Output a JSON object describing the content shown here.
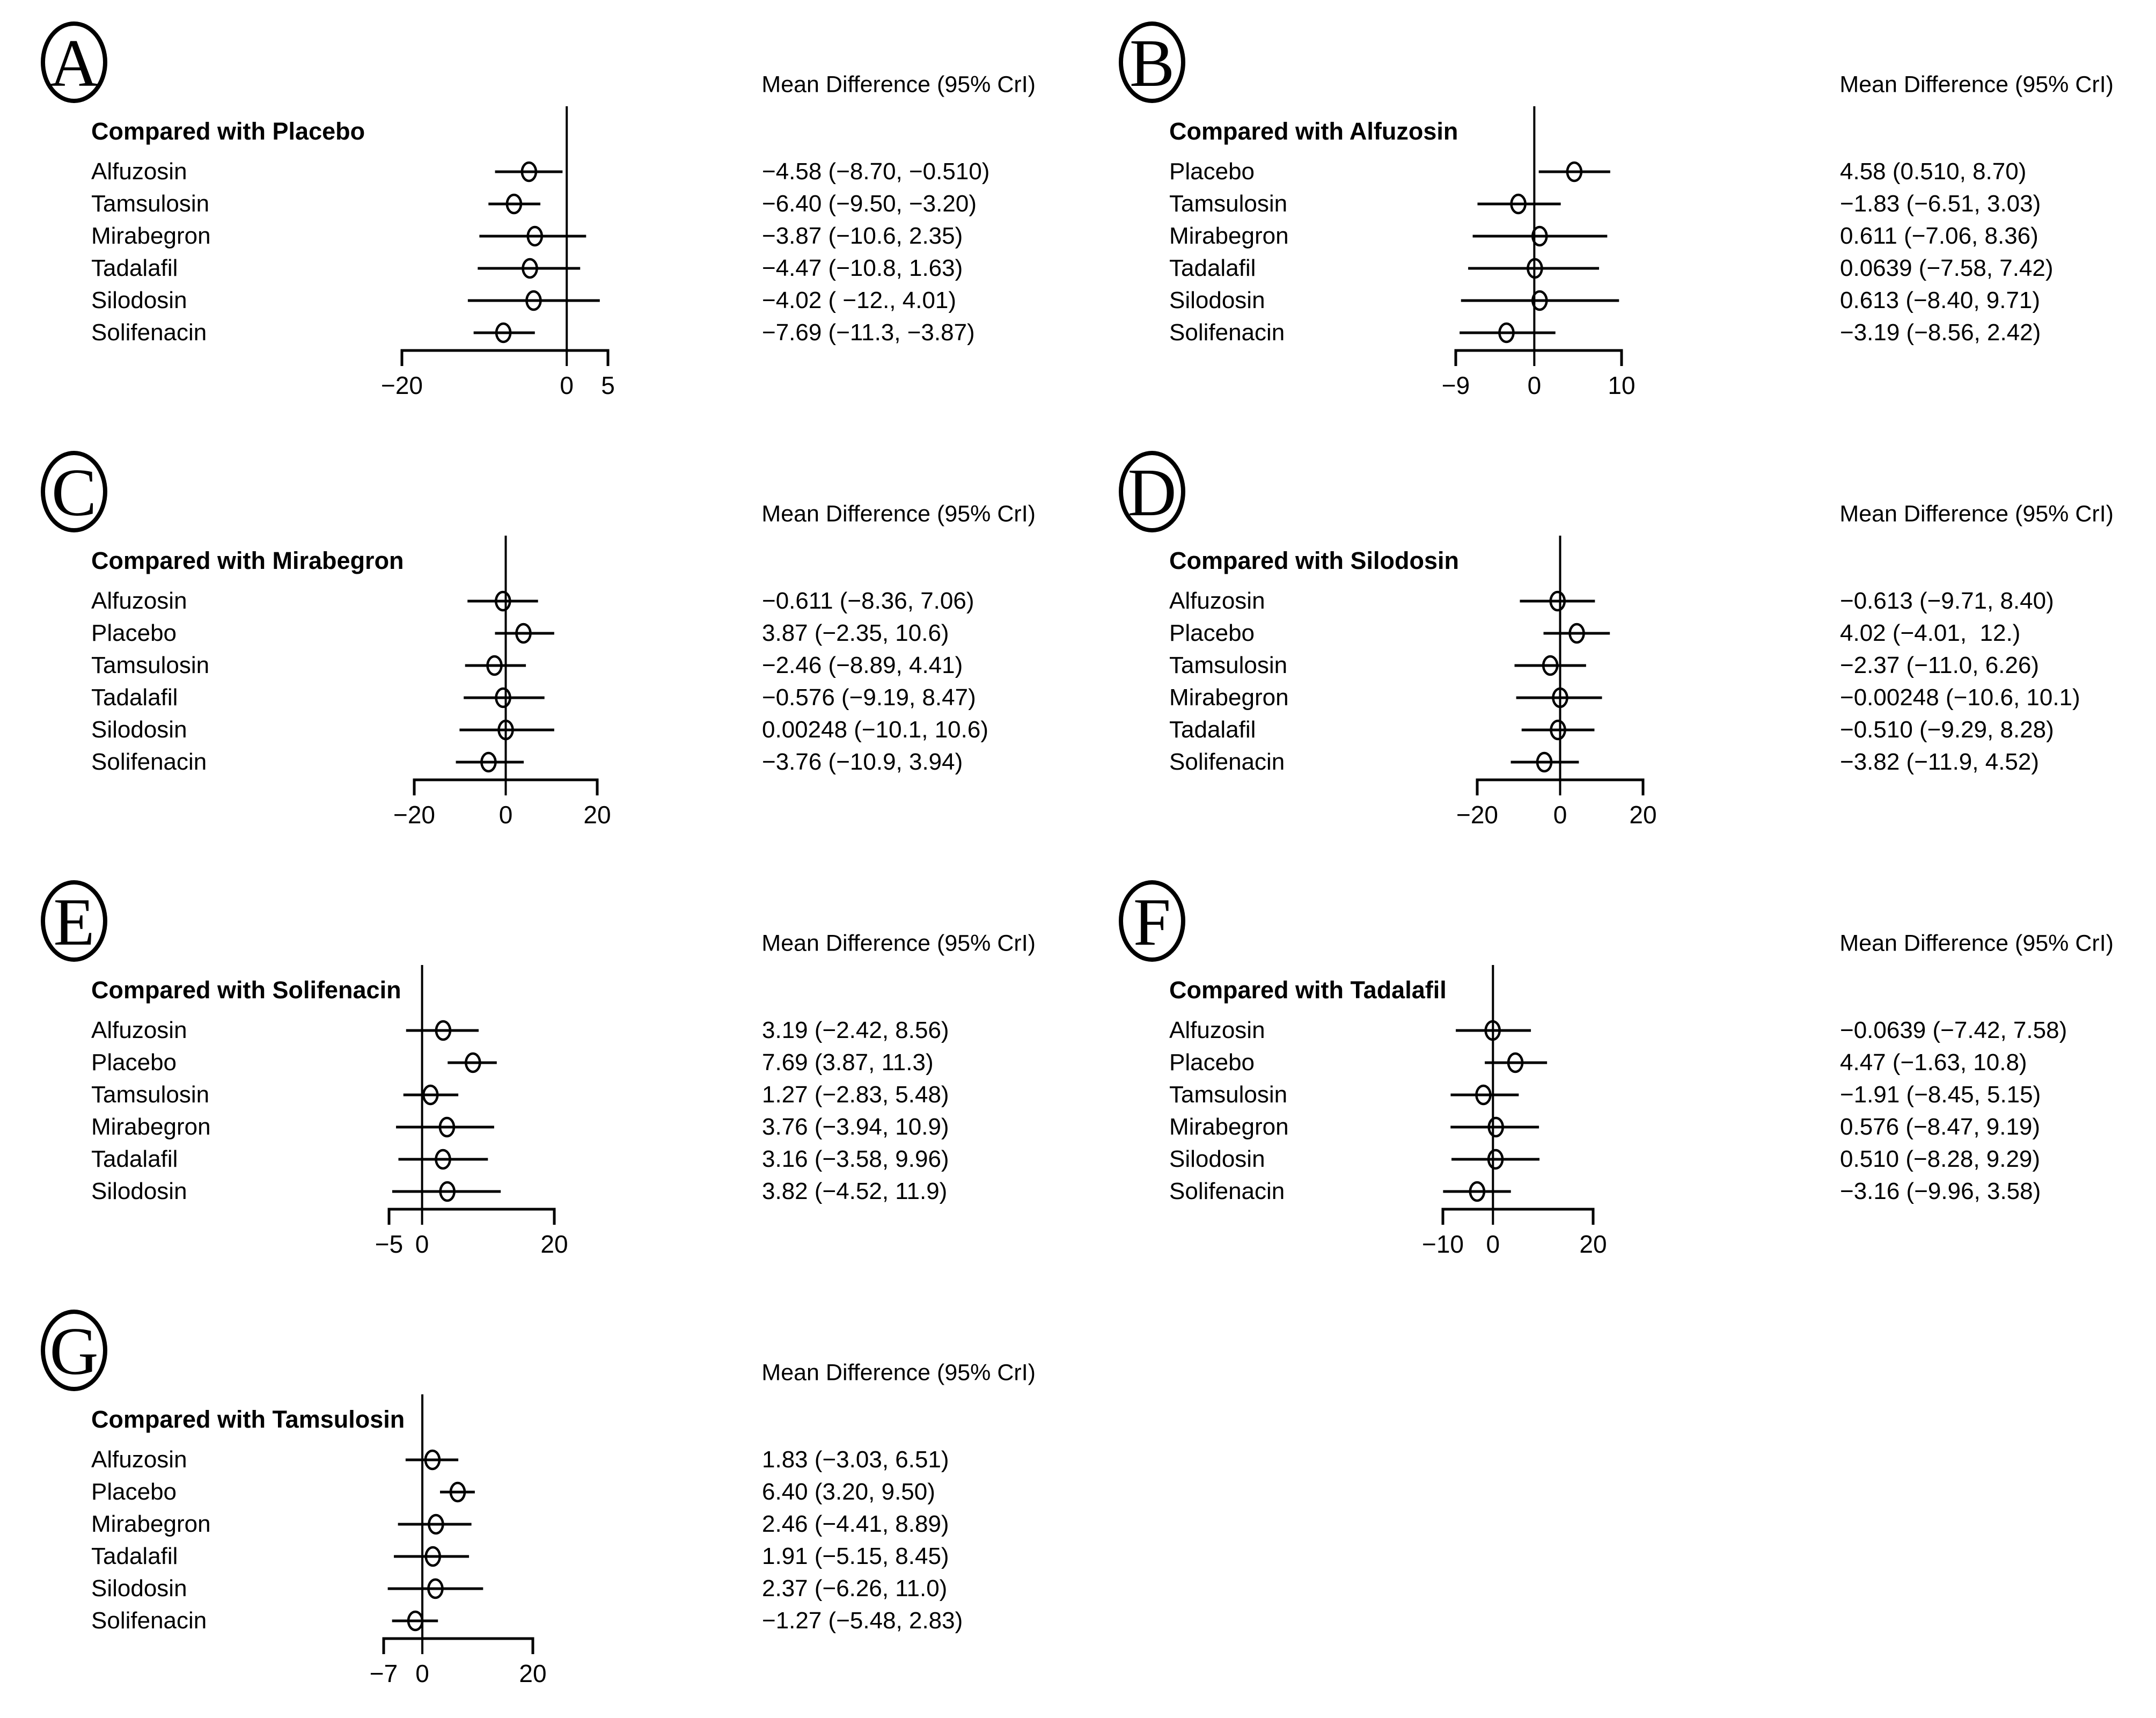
{
  "figure": {
    "background": "#ffffff",
    "ink": "#000000",
    "columns": 2,
    "panel_count": 7
  },
  "chart_data": [
    {
      "type": "scatter",
      "variant": "forest-plot",
      "letter": "A",
      "title": "Compared with Placebo",
      "header": "Mean Difference (95% CrI)",
      "xlim": [
        -20,
        5
      ],
      "grid": false,
      "ticks": [
        {
          "value": -20,
          "label": "−20"
        },
        {
          "value": 0,
          "label": "0"
        },
        {
          "value": 5,
          "label": "5"
        }
      ],
      "rows": [
        {
          "label": "Alfuzosin",
          "mean": -4.58,
          "lower": -8.7,
          "upper": -0.51,
          "text": "−4.58 (−8.70, −0.510)"
        },
        {
          "label": "Tamsulosin",
          "mean": -6.4,
          "lower": -9.5,
          "upper": -3.2,
          "text": "−6.40 (−9.50, −3.20)"
        },
        {
          "label": "Mirabegron",
          "mean": -3.87,
          "lower": -10.6,
          "upper": 2.35,
          "text": "−3.87 (−10.6, 2.35)"
        },
        {
          "label": "Tadalafil",
          "mean": -4.47,
          "lower": -10.8,
          "upper": 1.63,
          "text": "−4.47 (−10.8, 1.63)"
        },
        {
          "label": "Silodosin",
          "mean": -4.02,
          "lower": -12.0,
          "upper": 4.01,
          "text": "−4.02 ( −12., 4.01)"
        },
        {
          "label": "Solifenacin",
          "mean": -7.69,
          "lower": -11.3,
          "upper": -3.87,
          "text": "−7.69 (−11.3, −3.87)"
        }
      ]
    },
    {
      "type": "scatter",
      "variant": "forest-plot",
      "letter": "B",
      "title": "Compared with Alfuzosin",
      "header": "Mean Difference (95% CrI)",
      "xlim": [
        -9,
        10
      ],
      "grid": false,
      "ticks": [
        {
          "value": -9,
          "label": "−9"
        },
        {
          "value": 0,
          "label": "0"
        },
        {
          "value": 10,
          "label": "10"
        }
      ],
      "rows": [
        {
          "label": "Placebo",
          "mean": 4.58,
          "lower": 0.51,
          "upper": 8.7,
          "text": "4.58 (0.510, 8.70)"
        },
        {
          "label": "Tamsulosin",
          "mean": -1.83,
          "lower": -6.51,
          "upper": 3.03,
          "text": "−1.83 (−6.51, 3.03)"
        },
        {
          "label": "Mirabegron",
          "mean": 0.611,
          "lower": -7.06,
          "upper": 8.36,
          "text": "0.611 (−7.06, 8.36)"
        },
        {
          "label": "Tadalafil",
          "mean": 0.0639,
          "lower": -7.58,
          "upper": 7.42,
          "text": "0.0639 (−7.58, 7.42)"
        },
        {
          "label": "Silodosin",
          "mean": 0.613,
          "lower": -8.4,
          "upper": 9.71,
          "text": "0.613 (−8.40, 9.71)"
        },
        {
          "label": "Solifenacin",
          "mean": -3.19,
          "lower": -8.56,
          "upper": 2.42,
          "text": "−3.19 (−8.56, 2.42)"
        }
      ]
    },
    {
      "type": "scatter",
      "variant": "forest-plot",
      "letter": "C",
      "title": "Compared with Mirabegron",
      "header": "Mean Difference (95% CrI)",
      "xlim": [
        -20,
        20
      ],
      "grid": false,
      "ticks": [
        {
          "value": -20,
          "label": "−20"
        },
        {
          "value": 0,
          "label": "0"
        },
        {
          "value": 20,
          "label": "20"
        }
      ],
      "rows": [
        {
          "label": "Alfuzosin",
          "mean": -0.611,
          "lower": -8.36,
          "upper": 7.06,
          "text": "−0.611 (−8.36, 7.06)"
        },
        {
          "label": "Placebo",
          "mean": 3.87,
          "lower": -2.35,
          "upper": 10.6,
          "text": "3.87 (−2.35, 10.6)"
        },
        {
          "label": "Tamsulosin",
          "mean": -2.46,
          "lower": -8.89,
          "upper": 4.41,
          "text": "−2.46 (−8.89, 4.41)"
        },
        {
          "label": "Tadalafil",
          "mean": -0.576,
          "lower": -9.19,
          "upper": 8.47,
          "text": "−0.576 (−9.19, 8.47)"
        },
        {
          "label": "Silodosin",
          "mean": 0.00248,
          "lower": -10.1,
          "upper": 10.6,
          "text": "0.00248 (−10.1, 10.6)"
        },
        {
          "label": "Solifenacin",
          "mean": -3.76,
          "lower": -10.9,
          "upper": 3.94,
          "text": "−3.76 (−10.9, 3.94)"
        }
      ]
    },
    {
      "type": "scatter",
      "variant": "forest-plot",
      "letter": "D",
      "title": "Compared with Silodosin",
      "header": "Mean Difference (95% CrI)",
      "xlim": [
        -20,
        20
      ],
      "grid": false,
      "ticks": [
        {
          "value": -20,
          "label": "−20"
        },
        {
          "value": 0,
          "label": "0"
        },
        {
          "value": 20,
          "label": "20"
        }
      ],
      "rows": [
        {
          "label": "Alfuzosin",
          "mean": -0.613,
          "lower": -9.71,
          "upper": 8.4,
          "text": "−0.613 (−9.71, 8.40)"
        },
        {
          "label": "Placebo",
          "mean": 4.02,
          "lower": -4.01,
          "upper": 12.0,
          "text": "4.02 (−4.01,  12.)"
        },
        {
          "label": "Tamsulosin",
          "mean": -2.37,
          "lower": -11.0,
          "upper": 6.26,
          "text": "−2.37 (−11.0, 6.26)"
        },
        {
          "label": "Mirabegron",
          "mean": -0.00248,
          "lower": -10.6,
          "upper": 10.1,
          "text": "−0.00248 (−10.6, 10.1)"
        },
        {
          "label": "Tadalafil",
          "mean": -0.51,
          "lower": -9.29,
          "upper": 8.28,
          "text": "−0.510 (−9.29, 8.28)"
        },
        {
          "label": "Solifenacin",
          "mean": -3.82,
          "lower": -11.9,
          "upper": 4.52,
          "text": "−3.82 (−11.9, 4.52)"
        }
      ]
    },
    {
      "type": "scatter",
      "variant": "forest-plot",
      "letter": "E",
      "title": "Compared with Solifenacin",
      "header": "Mean Difference (95% CrI)",
      "xlim": [
        -5,
        20
      ],
      "grid": false,
      "ticks": [
        {
          "value": -5,
          "label": "−5"
        },
        {
          "value": 0,
          "label": "0"
        },
        {
          "value": 20,
          "label": "20"
        }
      ],
      "rows": [
        {
          "label": "Alfuzosin",
          "mean": 3.19,
          "lower": -2.42,
          "upper": 8.56,
          "text": "3.19 (−2.42, 8.56)"
        },
        {
          "label": "Placebo",
          "mean": 7.69,
          "lower": 3.87,
          "upper": 11.3,
          "text": "7.69 (3.87, 11.3)"
        },
        {
          "label": "Tamsulosin",
          "mean": 1.27,
          "lower": -2.83,
          "upper": 5.48,
          "text": "1.27 (−2.83, 5.48)"
        },
        {
          "label": "Mirabegron",
          "mean": 3.76,
          "lower": -3.94,
          "upper": 10.9,
          "text": "3.76 (−3.94, 10.9)"
        },
        {
          "label": "Tadalafil",
          "mean": 3.16,
          "lower": -3.58,
          "upper": 9.96,
          "text": "3.16 (−3.58, 9.96)"
        },
        {
          "label": "Silodosin",
          "mean": 3.82,
          "lower": -4.52,
          "upper": 11.9,
          "text": "3.82 (−4.52, 11.9)"
        }
      ]
    },
    {
      "type": "scatter",
      "variant": "forest-plot",
      "letter": "F",
      "title": "Compared with Tadalafil",
      "header": "Mean Difference (95% CrI)",
      "xlim": [
        -10,
        20
      ],
      "grid": false,
      "ticks": [
        {
          "value": -10,
          "label": "−10"
        },
        {
          "value": 0,
          "label": "0"
        },
        {
          "value": 20,
          "label": "20"
        }
      ],
      "rows": [
        {
          "label": "Alfuzosin",
          "mean": -0.0639,
          "lower": -7.42,
          "upper": 7.58,
          "text": "−0.0639 (−7.42, 7.58)"
        },
        {
          "label": "Placebo",
          "mean": 4.47,
          "lower": -1.63,
          "upper": 10.8,
          "text": "4.47 (−1.63, 10.8)"
        },
        {
          "label": "Tamsulosin",
          "mean": -1.91,
          "lower": -8.45,
          "upper": 5.15,
          "text": "−1.91 (−8.45, 5.15)"
        },
        {
          "label": "Mirabegron",
          "mean": 0.576,
          "lower": -8.47,
          "upper": 9.19,
          "text": "0.576 (−8.47, 9.19)"
        },
        {
          "label": "Silodosin",
          "mean": 0.51,
          "lower": -8.28,
          "upper": 9.29,
          "text": "0.510 (−8.28, 9.29)"
        },
        {
          "label": "Solifenacin",
          "mean": -3.16,
          "lower": -9.96,
          "upper": 3.58,
          "text": "−3.16 (−9.96, 3.58)"
        }
      ]
    },
    {
      "type": "scatter",
      "variant": "forest-plot",
      "letter": "G",
      "title": "Compared with Tamsulosin",
      "header": "Mean Difference (95% CrI)",
      "xlim": [
        -7,
        20
      ],
      "grid": false,
      "ticks": [
        {
          "value": -7,
          "label": "−7"
        },
        {
          "value": 0,
          "label": "0"
        },
        {
          "value": 20,
          "label": "20"
        }
      ],
      "rows": [
        {
          "label": "Alfuzosin",
          "mean": 1.83,
          "lower": -3.03,
          "upper": 6.51,
          "text": "1.83 (−3.03, 6.51)"
        },
        {
          "label": "Placebo",
          "mean": 6.4,
          "lower": 3.2,
          "upper": 9.5,
          "text": "6.40 (3.20, 9.50)"
        },
        {
          "label": "Mirabegron",
          "mean": 2.46,
          "lower": -4.41,
          "upper": 8.89,
          "text": "2.46 (−4.41, 8.89)"
        },
        {
          "label": "Tadalafil",
          "mean": 1.91,
          "lower": -5.15,
          "upper": 8.45,
          "text": "1.91 (−5.15, 8.45)"
        },
        {
          "label": "Silodosin",
          "mean": 2.37,
          "lower": -6.26,
          "upper": 11.0,
          "text": "2.37 (−6.26, 11.0)"
        },
        {
          "label": "Solifenacin",
          "mean": -1.27,
          "lower": -5.48,
          "upper": 2.83,
          "text": "−1.27 (−5.48, 2.83)"
        }
      ]
    }
  ]
}
